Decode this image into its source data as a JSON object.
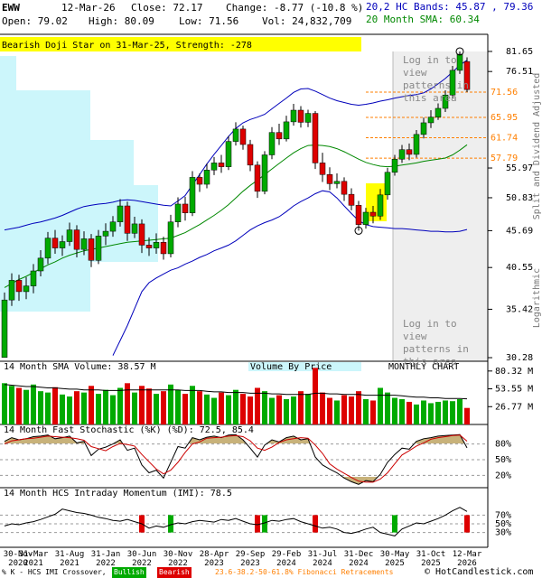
{
  "header": {
    "symbol": "EWW",
    "date": "12-Mar-26",
    "close": "Close: 72.17",
    "change": "Change: -8.77 (-10.8 %)",
    "open": "Open: 79.02",
    "high": "High: 80.09",
    "low": "Low: 71.56",
    "volume": "Vol: 24,832,709"
  },
  "footer": {
    "crossover": "% K - HCS IMI Crossover,",
    "bullish": "Bullish",
    "bearish": "Bearish",
    "fibonacci": "23.6-38.2-50-61.8% Fibonacci Retracements",
    "site": "© HotCandlestick.com"
  },
  "chart_data": [
    {
      "type": "candlestick",
      "annotation": "Bearish Doji Star on 31-Mar-25, Strength: -278",
      "notes": [
        "Split and Dividend Adjusted",
        "Logarithmic"
      ],
      "login_text": "Log in to view patterns in this area",
      "categories": [
        "30-Nov 2020",
        null,
        null,
        null,
        "31-Mar 2021",
        null,
        null,
        null,
        null,
        "31-Aug 2021",
        null,
        null,
        null,
        null,
        "31-Jan 2022",
        null,
        null,
        null,
        null,
        "30-Jun 2022",
        null,
        null,
        null,
        null,
        "30-Nov 2022",
        null,
        null,
        null,
        null,
        "28-Apr 2023",
        null,
        null,
        null,
        null,
        "29-Sep 2023",
        null,
        null,
        null,
        null,
        "29-Feb 2024",
        null,
        null,
        null,
        null,
        "31-Jul 2024",
        null,
        null,
        null,
        null,
        "31-Dec 2024",
        null,
        null,
        null,
        null,
        "30-May 2025",
        null,
        null,
        null,
        null,
        "31-Oct 2025",
        null,
        null,
        null,
        null,
        "12-Mar 2026"
      ],
      "open": [
        30.3,
        36.5,
        38.9,
        37.5,
        38.2,
        40.1,
        41.8,
        44.6,
        43.2,
        44.1,
        45.8,
        43.0,
        44.5,
        41.5,
        44.9,
        45.6,
        47.0,
        49.5,
        45.3,
        46.7,
        43.6,
        43.2,
        44.0,
        42.4,
        47.0,
        49.8,
        48.4,
        54.3,
        53.1,
        55.6,
        56.9,
        56.2,
        61.0,
        63.5,
        60.4,
        56.5,
        51.9,
        58.4,
        62.8,
        61.5,
        65.0,
        67.5,
        64.9,
        66.8,
        56.9,
        54.8,
        53.2,
        53.6,
        51.4,
        49.6,
        46.6,
        48.5,
        47.9,
        51.3,
        55.2,
        57.6,
        59.4,
        58.5,
        62.4,
        64.8,
        66.0,
        67.9,
        70.9,
        76.8,
        79.02
      ],
      "high": [
        37.4,
        39.8,
        39.6,
        39.3,
        41.0,
        42.9,
        45.5,
        45.8,
        45.0,
        46.9,
        46.5,
        45.6,
        45.2,
        45.8,
        46.8,
        47.9,
        50.6,
        50.2,
        47.8,
        47.4,
        44.7,
        45.3,
        44.8,
        48.1,
        50.9,
        51.0,
        55.4,
        55.0,
        56.8,
        58.0,
        58.4,
        62.1,
        64.9,
        64.2,
        61.3,
        57.2,
        59.1,
        63.9,
        64.6,
        66.3,
        68.9,
        68.4,
        67.6,
        67.3,
        58.8,
        56.1,
        55.0,
        54.3,
        52.4,
        50.3,
        49.2,
        49.5,
        52.3,
        56.0,
        58.4,
        60.3,
        60.6,
        63.3,
        65.9,
        67.5,
        69.0,
        72.0,
        77.9,
        81.65,
        80.09
      ],
      "low": [
        30.28,
        35.8,
        36.4,
        36.6,
        37.3,
        39.4,
        41.0,
        42.4,
        42.1,
        43.5,
        41.9,
        42.2,
        40.6,
        41.0,
        43.6,
        44.8,
        46.3,
        44.2,
        44.6,
        42.5,
        42.1,
        42.4,
        41.6,
        41.9,
        46.2,
        47.2,
        47.9,
        51.8,
        52.4,
        54.7,
        55.1,
        55.6,
        60.2,
        59.4,
        55.4,
        50.8,
        51.4,
        57.6,
        60.3,
        61.0,
        64.2,
        63.8,
        63.9,
        55.8,
        53.5,
        52.1,
        52.4,
        50.3,
        48.8,
        45.69,
        46.0,
        46.8,
        47.3,
        50.5,
        54.6,
        56.9,
        57.4,
        57.9,
        61.6,
        63.7,
        65.4,
        67.1,
        70.2,
        75.9,
        71.56
      ],
      "close": [
        36.5,
        38.9,
        37.5,
        38.2,
        40.1,
        41.8,
        44.6,
        43.2,
        44.1,
        45.8,
        43.0,
        44.5,
        41.5,
        44.9,
        45.6,
        47.0,
        49.5,
        45.3,
        46.7,
        43.6,
        43.2,
        44.0,
        42.4,
        47.0,
        49.8,
        48.4,
        54.3,
        53.1,
        55.6,
        56.9,
        56.2,
        61.0,
        63.5,
        60.4,
        56.5,
        51.9,
        58.4,
        62.8,
        61.5,
        65.0,
        67.5,
        64.9,
        66.8,
        56.9,
        54.8,
        53.2,
        53.6,
        51.4,
        49.6,
        46.6,
        48.5,
        47.9,
        51.3,
        55.2,
        57.6,
        59.4,
        58.5,
        62.4,
        64.8,
        66.0,
        67.9,
        70.9,
        76.8,
        80.9,
        72.17
      ],
      "up_color": "#00aa00",
      "down_color": "#dd0000",
      "bands": {
        "name": "20,2 HC Bands: 45.87 , 79.36",
        "color": "#0000bb",
        "upper": [
          45.8,
          46.0,
          46.2,
          46.5,
          46.8,
          47.0,
          47.3,
          47.6,
          48.0,
          48.5,
          49.0,
          49.4,
          49.6,
          49.8,
          49.9,
          50.1,
          50.4,
          50.5,
          50.4,
          50.2,
          50.0,
          49.8,
          49.6,
          49.5,
          50.3,
          51.2,
          53.0,
          54.8,
          56.7,
          58.5,
          60.2,
          62.0,
          63.6,
          64.8,
          65.5,
          66.0,
          66.6,
          67.8,
          69.0,
          70.2,
          71.5,
          72.3,
          72.4,
          71.8,
          71.0,
          70.2,
          69.6,
          69.2,
          68.8,
          68.6,
          68.8,
          69.1,
          69.5,
          69.8,
          70.2,
          70.5,
          70.8,
          71.0,
          71.4,
          72.3,
          73.5,
          74.8,
          76.4,
          78.1,
          79.36
        ],
        "lower": [
          null,
          null,
          null,
          null,
          null,
          null,
          null,
          null,
          null,
          null,
          null,
          null,
          null,
          null,
          null,
          30.5,
          32.0,
          33.6,
          35.5,
          37.5,
          38.6,
          39.2,
          39.7,
          40.2,
          40.5,
          41.0,
          41.4,
          41.9,
          42.3,
          42.8,
          43.2,
          43.6,
          44.2,
          45.0,
          45.8,
          46.4,
          46.9,
          47.3,
          47.8,
          48.6,
          49.5,
          50.2,
          50.8,
          51.5,
          52.0,
          51.8,
          50.8,
          49.5,
          48.3,
          47.2,
          46.6,
          46.3,
          46.2,
          46.1,
          46.0,
          46.0,
          45.9,
          45.8,
          45.7,
          45.6,
          45.6,
          45.5,
          45.5,
          45.6,
          45.87
        ]
      },
      "sma": {
        "name": "20 Month SMA: 60.34",
        "color": "#008800",
        "values": [
          38.0,
          38.5,
          39.0,
          39.4,
          39.9,
          40.4,
          40.9,
          41.3,
          41.8,
          42.2,
          42.5,
          42.8,
          43.0,
          43.2,
          43.4,
          43.6,
          43.8,
          44.0,
          44.1,
          44.2,
          44.3,
          44.4,
          44.5,
          44.6,
          45.0,
          45.4,
          46.0,
          46.6,
          47.3,
          48.0,
          48.8,
          49.7,
          50.8,
          51.9,
          52.9,
          53.8,
          54.8,
          55.8,
          56.8,
          57.8,
          58.8,
          59.6,
          60.2,
          60.3,
          60.2,
          60.0,
          59.6,
          59.0,
          58.3,
          57.6,
          57.0,
          56.6,
          56.3,
          56.2,
          56.3,
          56.5,
          56.7,
          56.9,
          57.2,
          57.4,
          57.6,
          57.8,
          58.4,
          59.3,
          60.34
        ]
      },
      "fibonacci": {
        "levels": [
          71.56,
          65.95,
          61.74,
          57.79
        ],
        "color": "#ff7f00"
      },
      "ylim": [
        29.93,
        85.8
      ],
      "log_scale": true,
      "yticks": [
        81.65,
        76.51,
        55.97,
        50.83,
        45.69,
        40.55,
        35.42,
        30.28
      ]
    },
    {
      "type": "bar",
      "title": "14 Month SMA Volume: 38.57 M",
      "subtitle": "Volume By Price",
      "label": "MONTHLY CHART",
      "values": [
        62,
        58,
        55,
        52,
        60,
        50,
        48,
        56,
        45,
        42,
        50,
        48,
        58,
        46,
        52,
        44,
        55,
        62,
        48,
        58,
        54,
        46,
        50,
        60,
        52,
        46,
        58,
        50,
        45,
        40,
        48,
        44,
        52,
        46,
        42,
        55,
        50,
        40,
        44,
        38,
        42,
        50,
        46,
        85,
        48,
        40,
        36,
        44,
        42,
        50,
        38,
        36,
        55,
        48,
        40,
        38,
        34,
        30,
        36,
        32,
        34,
        36,
        35,
        38,
        24.832709
      ],
      "sma_values": [
        60,
        59,
        58,
        57,
        57,
        56,
        55,
        55,
        54,
        53,
        53,
        52,
        52,
        52,
        51,
        51,
        51,
        52,
        52,
        52,
        52,
        52,
        52,
        52,
        52,
        51,
        51,
        51,
        50,
        49,
        49,
        48,
        48,
        48,
        47,
        47,
        47,
        46,
        46,
        45,
        45,
        45,
        45,
        47,
        47,
        46,
        46,
        45,
        45,
        45,
        44,
        44,
        44,
        44,
        44,
        43,
        42,
        41,
        41,
        40,
        40,
        39,
        39,
        39,
        38.57
      ],
      "ylim": [
        0,
        95
      ],
      "yticks": [
        {
          "value": 80.32,
          "label": "80.32 M"
        },
        {
          "value": 53.55,
          "label": "53.55 M"
        },
        {
          "value": 26.77,
          "label": "26.77 M"
        }
      ]
    },
    {
      "type": "line",
      "title": "14 Month Fast Stochastic (%K) (%D): 72.5, 85.4",
      "series": [
        {
          "color": "#000000",
          "values": [
            85,
            92,
            88,
            90,
            94,
            95,
            97,
            90,
            92,
            95,
            82,
            85,
            58,
            70,
            74,
            80,
            88,
            68,
            72,
            40,
            25,
            30,
            15,
            45,
            75,
            72,
            92,
            88,
            93,
            95,
            92,
            97,
            98,
            88,
            72,
            55,
            78,
            88,
            84,
            92,
            95,
            88,
            90,
            55,
            40,
            32,
            25,
            15,
            8,
            3,
            10,
            8,
            22,
            45,
            60,
            72,
            70,
            85,
            90,
            92,
            95,
            96,
            97,
            98,
            72.5
          ]
        },
        {
          "color": "#cc0000",
          "values": [
            80,
            86,
            88,
            90,
            91,
            93,
            95,
            94,
            93,
            92,
            90,
            87,
            75,
            71,
            67,
            75,
            81,
            79,
            76,
            60,
            46,
            32,
            23,
            30,
            45,
            64,
            80,
            84,
            91,
            92,
            93,
            95,
            96,
            94,
            86,
            72,
            68,
            74,
            83,
            88,
            90,
            92,
            91,
            78,
            62,
            42,
            32,
            24,
            16,
            9,
            7,
            7,
            13,
            25,
            42,
            59,
            67,
            76,
            82,
            89,
            92,
            94,
            96,
            97,
            85.4
          ]
        }
      ],
      "shade_color": "#c8b27a",
      "ylim": [
        0,
        100
      ],
      "yticks": [
        {
          "value": 80,
          "label": "80%"
        },
        {
          "value": 50,
          "label": "50%"
        },
        {
          "value": 20,
          "label": "20%"
        }
      ]
    },
    {
      "type": "line",
      "title": "14 Month HCS Intraday Momentum (IMI): 78.5",
      "values": [
        45,
        50,
        48,
        52,
        55,
        60,
        66,
        72,
        84,
        80,
        76,
        74,
        70,
        65,
        62,
        58,
        56,
        60,
        55,
        50,
        40,
        45,
        42,
        48,
        52,
        50,
        55,
        58,
        56,
        54,
        60,
        58,
        62,
        56,
        50,
        48,
        52,
        58,
        56,
        60,
        62,
        55,
        50,
        45,
        40,
        42,
        38,
        30,
        28,
        32,
        38,
        42,
        30,
        26,
        22,
        38,
        45,
        52,
        50,
        56,
        62,
        70,
        80,
        88,
        78.5
      ],
      "signals": [
        0,
        0,
        0,
        0,
        0,
        0,
        0,
        0,
        0,
        0,
        0,
        0,
        0,
        0,
        0,
        0,
        0,
        0,
        0,
        -1,
        0,
        0,
        0,
        1,
        0,
        0,
        0,
        0,
        0,
        0,
        0,
        0,
        0,
        0,
        0,
        -1,
        1,
        0,
        0,
        0,
        0,
        0,
        0,
        -1,
        0,
        0,
        0,
        0,
        0,
        0,
        0,
        0,
        0,
        0,
        1,
        0,
        0,
        0,
        0,
        0,
        0,
        0,
        0,
        0,
        -1
      ],
      "color": "#000000",
      "bull_color": "#00aa00",
      "bear_color": "#dd0000",
      "ylim": [
        0,
        100
      ],
      "yticks": [
        {
          "value": 70,
          "label": "70%"
        },
        {
          "value": 50,
          "label": "50%"
        },
        {
          "value": 30,
          "label": "30%"
        }
      ]
    }
  ]
}
